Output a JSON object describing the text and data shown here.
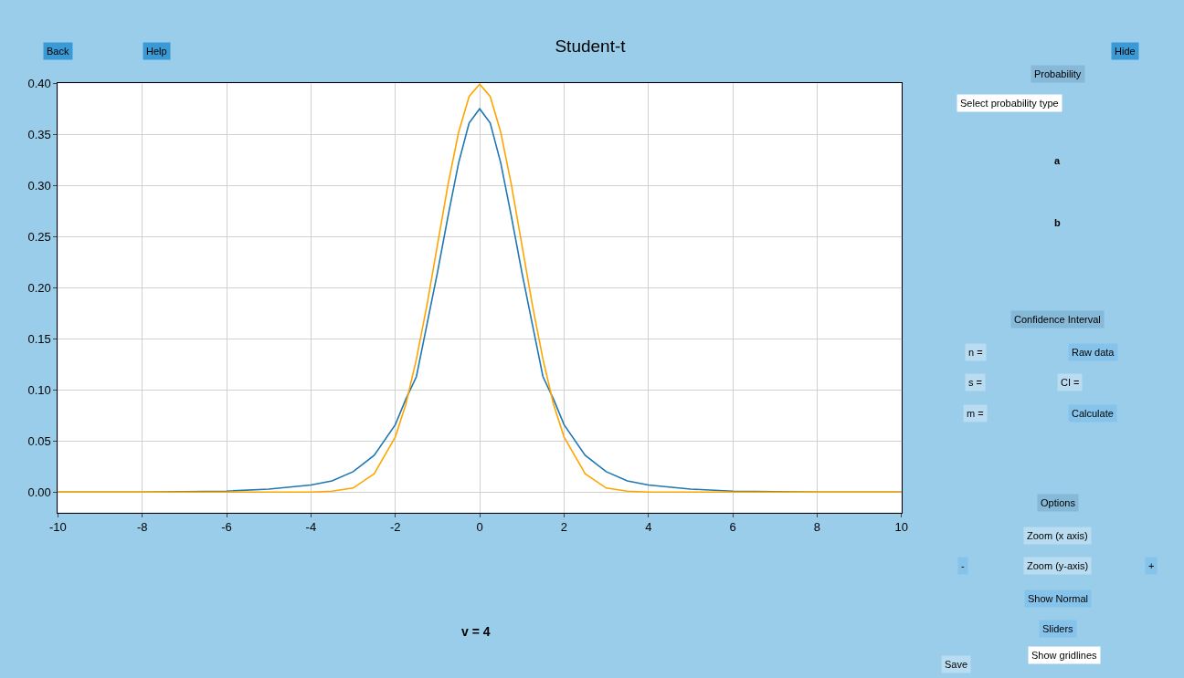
{
  "chart_data": {
    "type": "line",
    "title": "Student-t",
    "x": [
      -10,
      -8,
      -6,
      -5,
      -4,
      -3.5,
      -3,
      -2.5,
      -2,
      -1.75,
      -1.5,
      -1.25,
      -1,
      -0.75,
      -0.5,
      -0.25,
      0,
      0.25,
      0.5,
      0.75,
      1,
      1.25,
      1.5,
      1.75,
      2,
      2.5,
      3,
      3.5,
      4,
      5,
      6,
      8,
      10
    ],
    "series": [
      {
        "color": "#1f77b4",
        "values": [
          0.0,
          0.0,
          0.001,
          0.003,
          0.007,
          0.011,
          0.02,
          0.036,
          0.066,
          0.091,
          0.113,
          0.164,
          0.215,
          0.27,
          0.322,
          0.361,
          0.375,
          0.361,
          0.322,
          0.27,
          0.215,
          0.164,
          0.113,
          0.091,
          0.066,
          0.036,
          0.02,
          0.011,
          0.007,
          0.003,
          0.001,
          0.0,
          0.0
        ]
      },
      {
        "color": "#ffa500",
        "values": [
          0.0,
          0.0,
          0.0,
          0.0,
          0.0,
          0.001,
          0.004,
          0.018,
          0.054,
          0.086,
          0.13,
          0.183,
          0.242,
          0.301,
          0.352,
          0.387,
          0.399,
          0.387,
          0.352,
          0.301,
          0.242,
          0.183,
          0.13,
          0.086,
          0.054,
          0.018,
          0.004,
          0.001,
          0.0,
          0.0,
          0.0,
          0.0,
          0.0
        ]
      }
    ],
    "xlim": [
      -10,
      10
    ],
    "xticks": [
      -10,
      -8,
      -6,
      -4,
      -2,
      0,
      2,
      4,
      6,
      8,
      10
    ],
    "ylim": [
      -0.02,
      0.4
    ],
    "yticks": [
      {
        "value": 0,
        "label": "0.00"
      },
      {
        "value": 0.05,
        "label": "0.05"
      },
      {
        "value": 0.1,
        "label": "0.10"
      },
      {
        "value": 0.15,
        "label": "0.15"
      },
      {
        "value": 0.2,
        "label": "0.20"
      },
      {
        "value": 0.25,
        "label": "0.25"
      },
      {
        "value": 0.3,
        "label": "0.30"
      },
      {
        "value": 0.35,
        "label": "0.35"
      },
      {
        "value": 0.4,
        "label": "0.40"
      }
    ],
    "grid": true,
    "marker": "none",
    "line_style": "solid",
    "annotations": [
      "Back",
      "Help",
      "Hide",
      "Probability",
      "Select probability type",
      "a",
      "b",
      "Confidence Interval",
      "n =",
      "s =",
      "m =",
      "Raw data",
      "CI =",
      "Calculate",
      "Options",
      "Zoom (x axis)",
      "Zoom (y-axis)",
      "-",
      "+",
      "Show Normal",
      "Sliders",
      "Show gridlines",
      "Save",
      "v = 4"
    ]
  }
}
